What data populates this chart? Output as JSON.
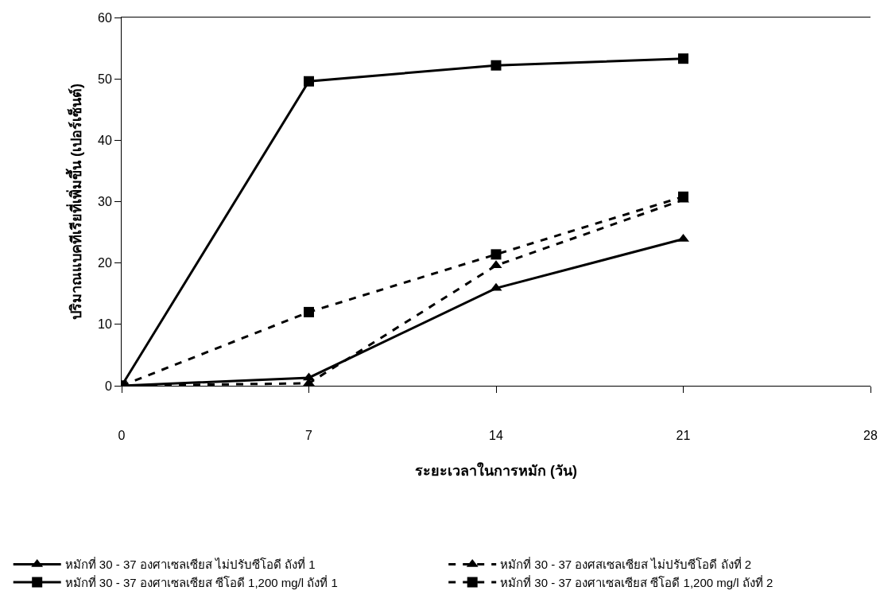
{
  "chart_data": {
    "type": "line",
    "xlabel": "ระยะเวลาในการหมัก (วัน)",
    "ylabel": "ปริมาณแบคทีเรียที่เพิ่มขึ้น (เปอร์เซ็นต์)",
    "x": [
      0,
      7,
      14,
      21
    ],
    "xlim": [
      0,
      28
    ],
    "xticks": [
      0,
      7,
      14,
      21,
      28
    ],
    "ylim": [
      0,
      60
    ],
    "yticks": [
      0,
      10,
      20,
      30,
      40,
      50,
      60
    ],
    "series": [
      {
        "name": "หมักที่ 30 - 37 องศาเซลเซียส ไม่ปรับซีโอดี ถังที่ 1",
        "color": "#000000",
        "marker": "triangle",
        "line_style": "solid",
        "values": [
          0,
          1.3,
          15.9,
          23.9
        ]
      },
      {
        "name": "หมักที่ 30 - 37 องศสเซลเซียส ไม่ปรับซีโอดี ถังที่ 2",
        "color": "#000000",
        "marker": "triangle",
        "line_style": "dashed",
        "values": [
          0,
          0.4,
          19.6,
          30.3
        ]
      },
      {
        "name": "หมักที่ 30 - 37 องศาเซลเซียส ซีโอดี 1,200 mg/l ถังที่ 1",
        "color": "#000000",
        "marker": "square",
        "line_style": "solid",
        "values": [
          0,
          49.6,
          52.2,
          53.3
        ]
      },
      {
        "name": "หมักที่ 30 - 37 องศาเซลเซียส ซีโอดี 1,200 mg/l ถังที่ 2",
        "color": "#000000",
        "marker": "square",
        "line_style": "dashed",
        "values": [
          0,
          12.0,
          21.4,
          30.8
        ]
      }
    ],
    "grid": false,
    "legend": "bottom"
  }
}
